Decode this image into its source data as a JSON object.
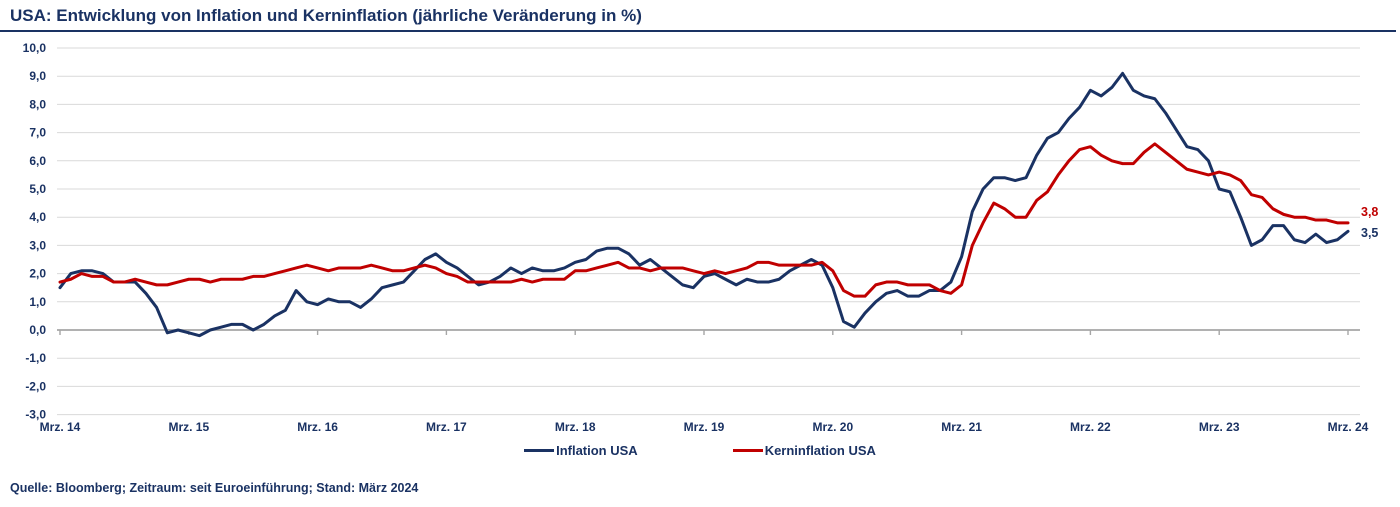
{
  "chart_data": {
    "type": "line",
    "title": "USA: Entwicklung von Inflation und Kerninflation (jährliche Veränderung in %)",
    "xlabel": "",
    "ylabel": "",
    "ylim": [
      -3,
      10
    ],
    "grid": true,
    "legend_position": "bottom",
    "x_tick_labels": [
      "Mrz. 14",
      "Mrz. 15",
      "Mrz. 16",
      "Mrz. 17",
      "Mrz. 18",
      "Mrz. 19",
      "Mrz. 20",
      "Mrz. 21",
      "Mrz. 22",
      "Mrz. 23",
      "Mrz. 24"
    ],
    "y_tick_values": [
      10,
      9,
      8,
      7,
      6,
      5,
      4,
      3,
      2,
      1,
      0,
      -1,
      -2,
      -3
    ],
    "y_tick_labels": [
      "10,0",
      "9,0",
      "8,0",
      "7,0",
      "6,0",
      "5,0",
      "4,0",
      "3,0",
      "2,0",
      "1,0",
      "0,0",
      "-1,0",
      "-2,0",
      "-3,0"
    ],
    "series": [
      {
        "name": "Inflation USA",
        "color": "#1A3263",
        "end_label": "3,5",
        "values": [
          1.5,
          2.0,
          2.1,
          2.1,
          2.0,
          1.7,
          1.7,
          1.7,
          1.3,
          0.8,
          -0.1,
          0.0,
          -0.1,
          -0.2,
          0.0,
          0.1,
          0.2,
          0.2,
          0.0,
          0.2,
          0.5,
          0.7,
          1.4,
          1.0,
          0.9,
          1.1,
          1.0,
          1.0,
          0.8,
          1.1,
          1.5,
          1.6,
          1.7,
          2.1,
          2.5,
          2.7,
          2.4,
          2.2,
          1.9,
          1.6,
          1.7,
          1.9,
          2.2,
          2.0,
          2.2,
          2.1,
          2.1,
          2.2,
          2.4,
          2.5,
          2.8,
          2.9,
          2.9,
          2.7,
          2.3,
          2.5,
          2.2,
          1.9,
          1.6,
          1.5,
          1.9,
          2.0,
          1.8,
          1.6,
          1.8,
          1.7,
          1.7,
          1.8,
          2.1,
          2.3,
          2.5,
          2.3,
          1.5,
          0.3,
          0.1,
          0.6,
          1.0,
          1.3,
          1.4,
          1.2,
          1.2,
          1.4,
          1.4,
          1.7,
          2.6,
          4.2,
          5.0,
          5.4,
          5.4,
          5.3,
          5.4,
          6.2,
          6.8,
          7.0,
          7.5,
          7.9,
          8.5,
          8.3,
          8.6,
          9.1,
          8.5,
          8.3,
          8.2,
          7.7,
          7.1,
          6.5,
          6.4,
          6.0,
          5.0,
          4.9,
          4.0,
          3.0,
          3.2,
          3.7,
          3.7,
          3.2,
          3.1,
          3.4,
          3.1,
          3.2,
          3.5
        ]
      },
      {
        "name": "Kerninflation USA",
        "color": "#C00000",
        "end_label": "3,8",
        "values": [
          1.7,
          1.8,
          2.0,
          1.9,
          1.9,
          1.7,
          1.7,
          1.8,
          1.7,
          1.6,
          1.6,
          1.7,
          1.8,
          1.8,
          1.7,
          1.8,
          1.8,
          1.8,
          1.9,
          1.9,
          2.0,
          2.1,
          2.2,
          2.3,
          2.2,
          2.1,
          2.2,
          2.2,
          2.2,
          2.3,
          2.2,
          2.1,
          2.1,
          2.2,
          2.3,
          2.2,
          2.0,
          1.9,
          1.7,
          1.7,
          1.7,
          1.7,
          1.7,
          1.8,
          1.7,
          1.8,
          1.8,
          1.8,
          2.1,
          2.1,
          2.2,
          2.3,
          2.4,
          2.2,
          2.2,
          2.1,
          2.2,
          2.2,
          2.2,
          2.1,
          2.0,
          2.1,
          2.0,
          2.1,
          2.2,
          2.4,
          2.4,
          2.3,
          2.3,
          2.3,
          2.3,
          2.4,
          2.1,
          1.4,
          1.2,
          1.2,
          1.6,
          1.7,
          1.7,
          1.6,
          1.6,
          1.6,
          1.4,
          1.3,
          1.6,
          3.0,
          3.8,
          4.5,
          4.3,
          4.0,
          4.0,
          4.6,
          4.9,
          5.5,
          6.0,
          6.4,
          6.5,
          6.2,
          6.0,
          5.9,
          5.9,
          6.3,
          6.6,
          6.3,
          6.0,
          5.7,
          5.6,
          5.5,
          5.6,
          5.5,
          5.3,
          4.8,
          4.7,
          4.3,
          4.1,
          4.0,
          4.0,
          3.9,
          3.9,
          3.8,
          3.8
        ]
      }
    ]
  },
  "footer": {
    "source": "Quelle: Bloomberg; Zeitraum: seit Euroeinführung; Stand: März 2024"
  },
  "colors": {
    "gridline": "#D9D9D9",
    "axis_line": "#A6A6A6",
    "text": "#1A3263",
    "background": "#FFFFFF"
  }
}
